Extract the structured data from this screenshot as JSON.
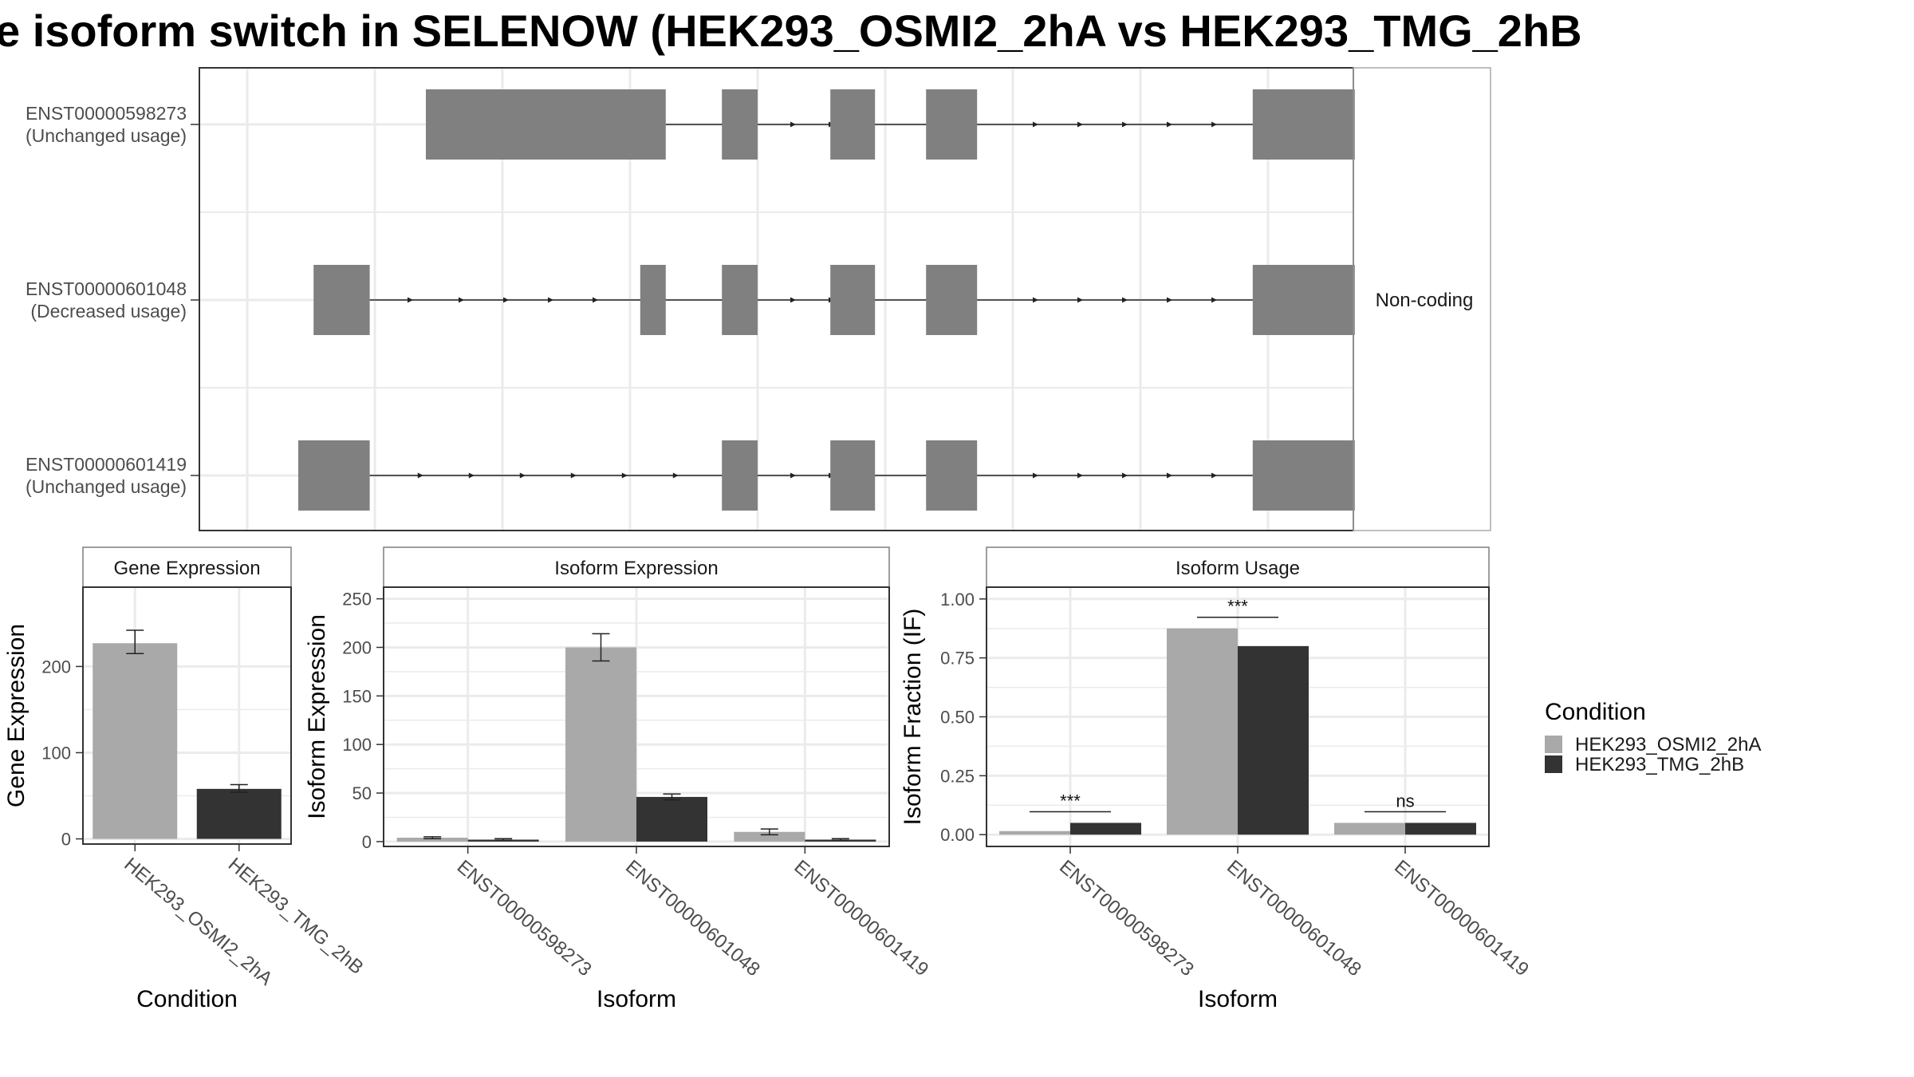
{
  "title": "e isoform switch in SELENOW (HEK293_OSMI2_2hA vs HEK293_TMG_2hB",
  "colors": {
    "condition_a": "#a9a9a9",
    "condition_b": "#333333",
    "exon": "#808080",
    "grid": "#ebebeb",
    "frame": "#333333",
    "strip_border": "#7f7f7f"
  },
  "chart_data": [
    {
      "type": "diagram",
      "name": "transcript-structure",
      "strip_label": "Non-coding",
      "x_range": [
        0,
        1000
      ],
      "transcripts": [
        {
          "id": "ENST00000598273",
          "usage": "(Unchanged usage)",
          "exons": [
            [
              140,
              328
            ],
            [
              372,
              400
            ],
            [
              457,
              492
            ],
            [
              532,
              572
            ],
            [
              788,
              868
            ]
          ],
          "arrows": [
            430,
            460,
            620,
            655,
            690,
            725,
            760
          ]
        },
        {
          "id": "ENST00000601048",
          "usage": "(Decreased usage)",
          "exons": [
            [
              52,
              96
            ],
            [
              308,
              328
            ],
            [
              372,
              400
            ],
            [
              457,
              492
            ],
            [
              532,
              572
            ],
            [
              788,
              868
            ]
          ],
          "arrows": [
            130,
            170,
            205,
            240,
            275,
            430,
            460,
            620,
            655,
            690,
            725,
            760
          ]
        },
        {
          "id": "ENST00000601419",
          "usage": "(Unchanged usage)",
          "exons": [
            [
              40,
              96
            ],
            [
              372,
              400
            ],
            [
              457,
              492
            ],
            [
              532,
              572
            ],
            [
              788,
              868
            ]
          ],
          "arrows": [
            138,
            178,
            218,
            258,
            298,
            338,
            430,
            460,
            620,
            655,
            690,
            725,
            760
          ]
        }
      ]
    },
    {
      "type": "bar",
      "name": "gene-expression",
      "strip_title": "Gene Expression",
      "xlabel": "Condition",
      "ylabel": "Gene Expression",
      "categories": [
        "HEK293_OSMI2_2hA",
        "HEK293_TMG_2hB"
      ],
      "values": [
        227,
        58
      ],
      "error": [
        [
          215,
          242
        ],
        [
          54,
          63
        ]
      ],
      "ylim": [
        -6,
        292
      ],
      "yticks": [
        "0",
        "100",
        "200"
      ]
    },
    {
      "type": "bar",
      "name": "isoform-expression",
      "strip_title": "Isoform Expression",
      "xlabel": "Isoform",
      "ylabel": "Isoform Expression",
      "categories": [
        "ENST00000598273",
        "ENST00000601048",
        "ENST00000601419"
      ],
      "series": [
        {
          "name": "HEK293_OSMI2_2hA",
          "values": [
            4,
            200,
            10
          ],
          "error": [
            [
              3,
              5
            ],
            [
              186,
              214
            ],
            [
              7,
              13
            ]
          ]
        },
        {
          "name": "HEK293_TMG_2hB",
          "values": [
            2,
            46,
            2
          ],
          "error": [
            [
              1.5,
              3
            ],
            [
              43,
              49
            ],
            [
              1.5,
              3
            ]
          ]
        }
      ],
      "ylim": [
        -5,
        262
      ],
      "yticks": [
        "0",
        "50",
        "100",
        "150",
        "200",
        "250"
      ]
    },
    {
      "type": "bar",
      "name": "isoform-usage",
      "strip_title": "Isoform Usage",
      "xlabel": "Isoform",
      "ylabel": "Isoform Fraction (IF)",
      "categories": [
        "ENST00000598273",
        "ENST00000601048",
        "ENST00000601419"
      ],
      "series": [
        {
          "name": "HEK293_OSMI2_2hA",
          "values": [
            0.015,
            0.875,
            0.05
          ]
        },
        {
          "name": "HEK293_TMG_2hB",
          "values": [
            0.05,
            0.8,
            0.05
          ]
        }
      ],
      "significance": [
        "***",
        "***",
        "ns"
      ],
      "ylim": [
        -0.05,
        1.05
      ],
      "yticks": [
        "0.00",
        "0.25",
        "0.50",
        "0.75",
        "1.00"
      ]
    }
  ],
  "legend": {
    "title": "Condition",
    "items": [
      "HEK293_OSMI2_2hA",
      "HEK293_TMG_2hB"
    ]
  }
}
